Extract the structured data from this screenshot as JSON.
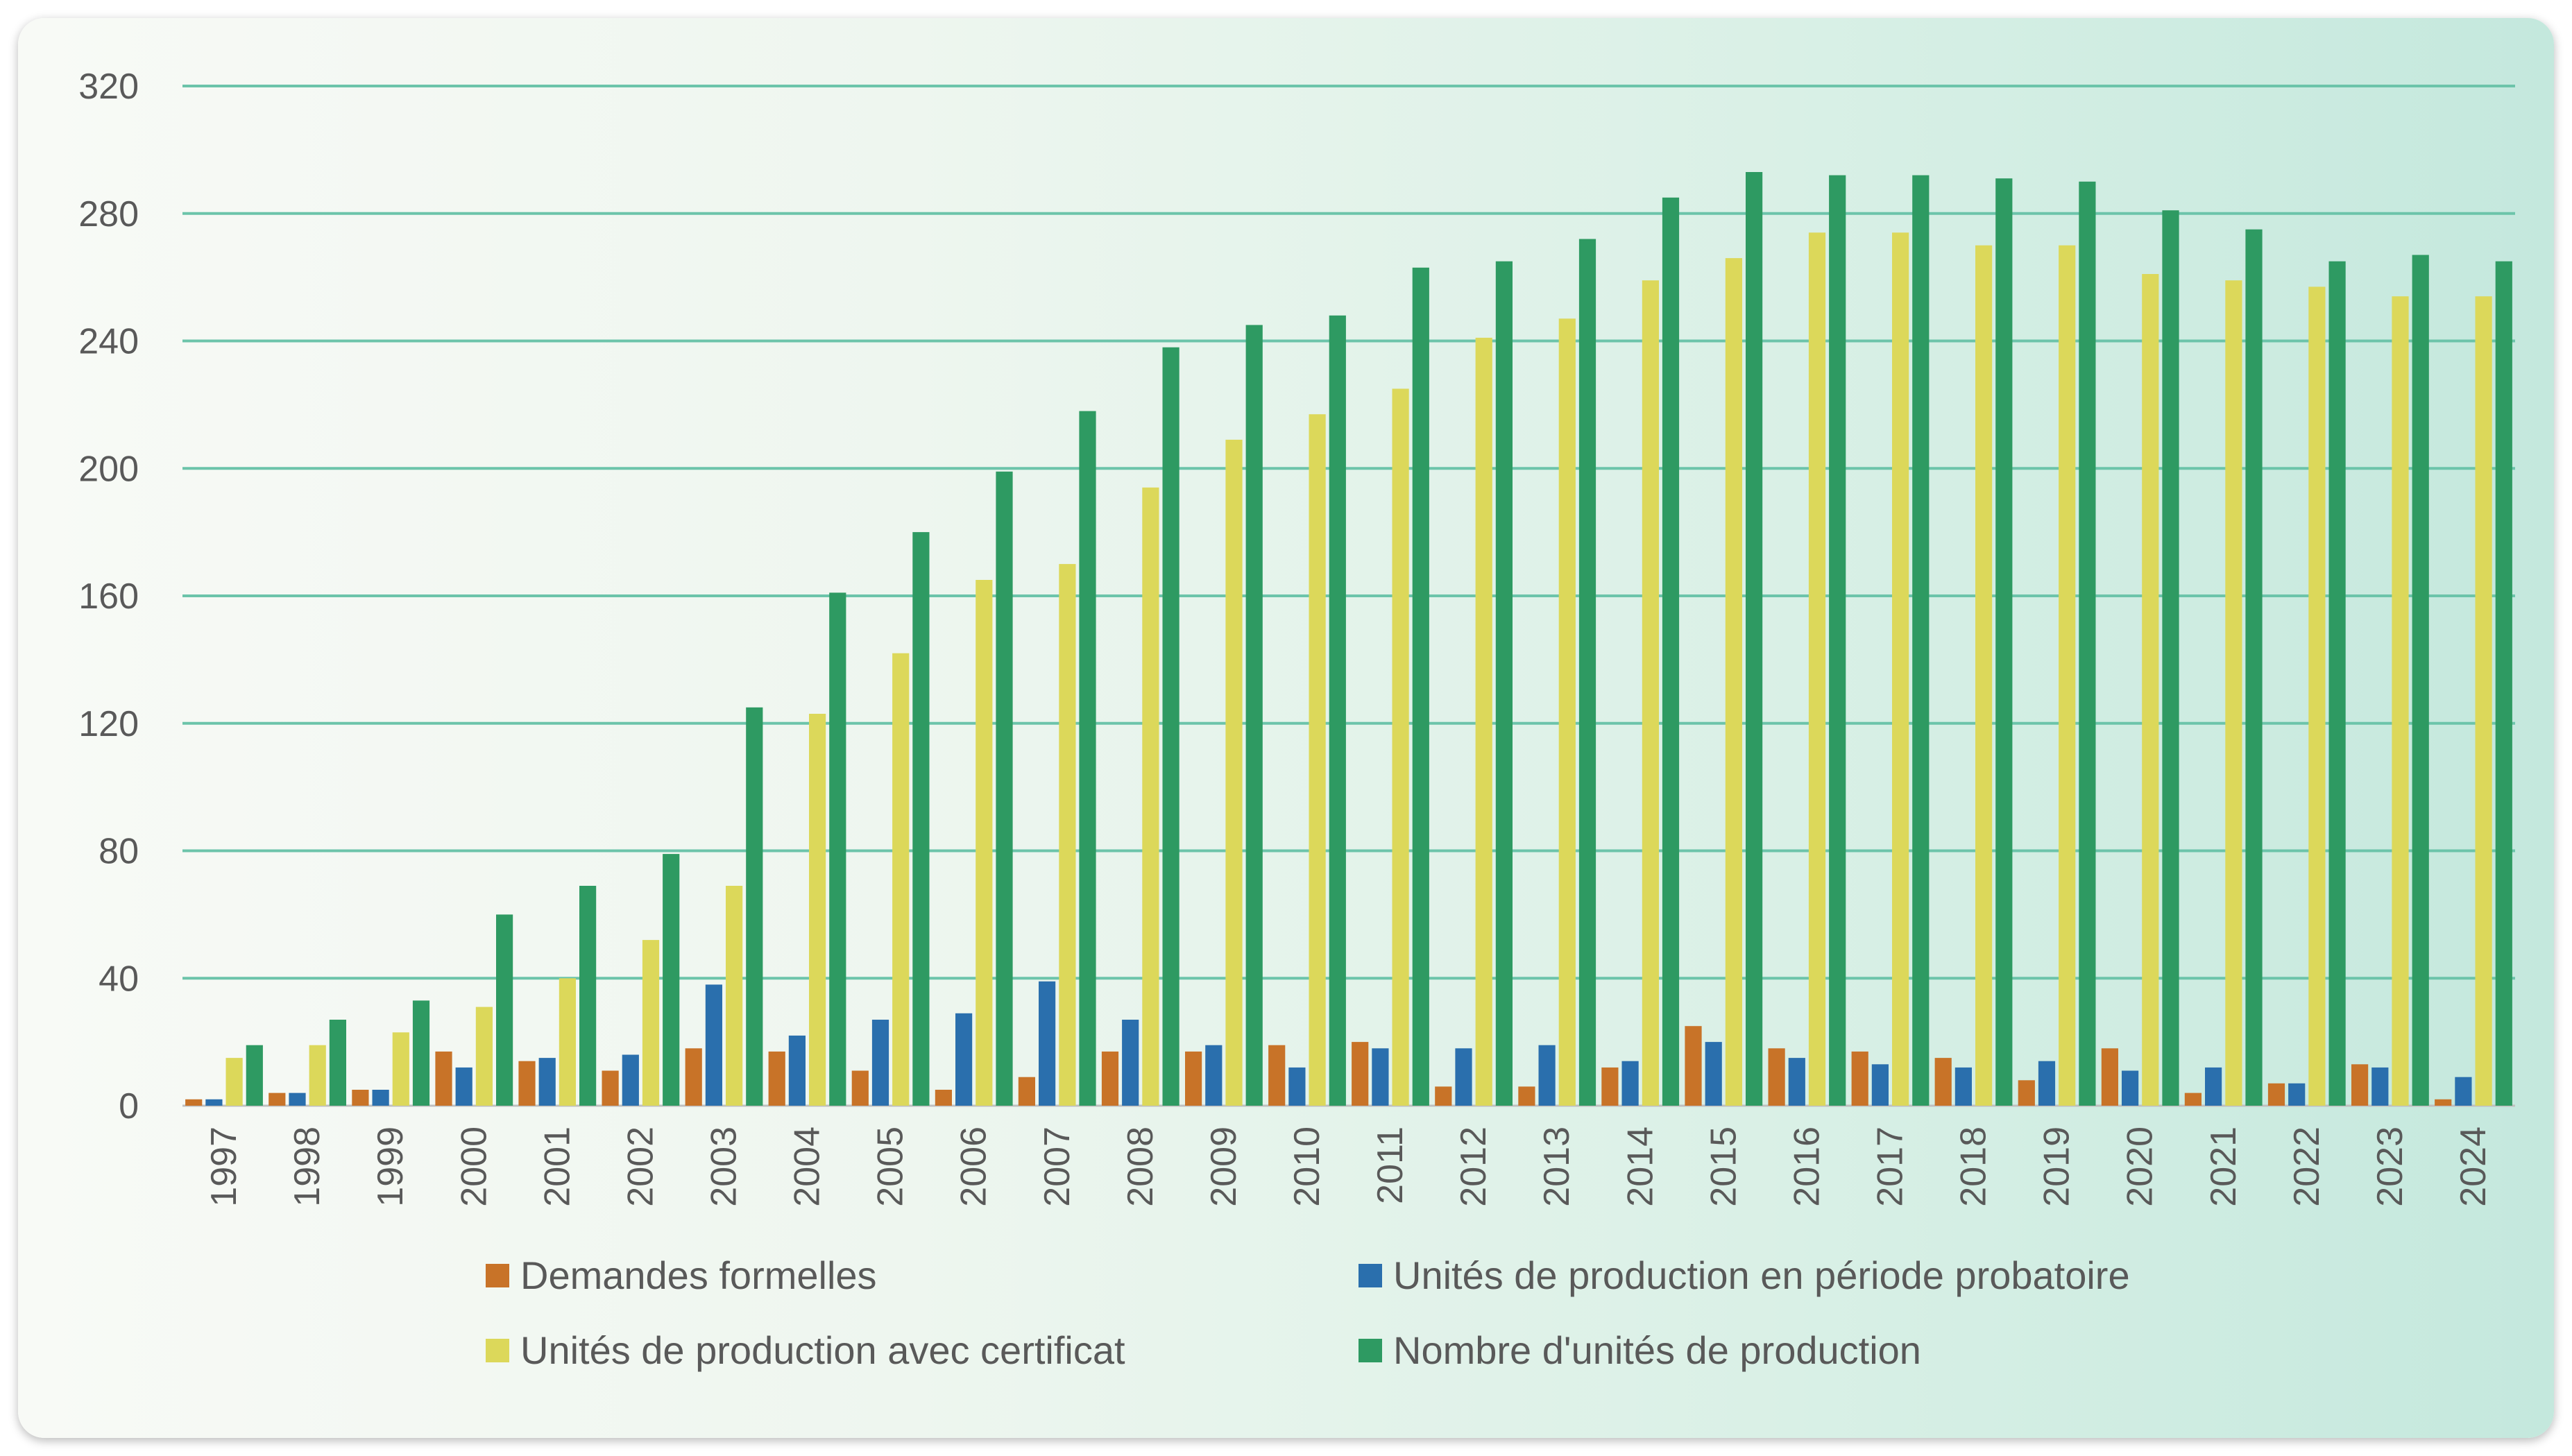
{
  "chart_data": {
    "type": "bar",
    "title": "",
    "xlabel": "",
    "ylabel": "",
    "ylim": [
      0,
      320
    ],
    "yticks": [
      0,
      40,
      80,
      120,
      160,
      200,
      240,
      280,
      320
    ],
    "grid": true,
    "legend_position": "bottom",
    "categories": [
      "1997",
      "1998",
      "1999",
      "2000",
      "2001",
      "2002",
      "2003",
      "2004",
      "2005",
      "2006",
      "2007",
      "2008",
      "2009",
      "2010",
      "2011",
      "2012",
      "2013",
      "2014",
      "2015",
      "2016",
      "2017",
      "2018",
      "2019",
      "2020",
      "2021",
      "2022",
      "2023",
      "2024"
    ],
    "series": [
      {
        "name": "Demandes formelles",
        "color": "#c87328",
        "values": [
          2,
          4,
          5,
          17,
          14,
          11,
          18,
          17,
          11,
          5,
          9,
          17,
          17,
          19,
          20,
          6,
          6,
          12,
          25,
          18,
          17,
          15,
          8,
          18,
          4,
          7,
          13,
          2
        ]
      },
      {
        "name": "Unités de production en période probatoire",
        "color": "#2a6fad",
        "values": [
          2,
          4,
          5,
          12,
          15,
          16,
          38,
          22,
          27,
          29,
          39,
          27,
          19,
          12,
          18,
          18,
          19,
          14,
          20,
          15,
          13,
          12,
          14,
          11,
          12,
          7,
          12,
          9
        ]
      },
      {
        "name": "Unités de production avec certificat",
        "color": "#dcd85a",
        "values": [
          15,
          19,
          23,
          31,
          40,
          52,
          69,
          123,
          142,
          165,
          170,
          194,
          209,
          217,
          225,
          241,
          247,
          259,
          266,
          274,
          274,
          270,
          270,
          261,
          259,
          257,
          254,
          254
        ]
      },
      {
        "name": "Nombre d'unités de production",
        "color": "#2e9a62",
        "values": [
          19,
          27,
          33,
          60,
          69,
          79,
          125,
          161,
          180,
          199,
          218,
          238,
          245,
          248,
          263,
          265,
          272,
          285,
          293,
          292,
          292,
          291,
          290,
          281,
          275,
          265,
          267,
          265
        ]
      }
    ]
  }
}
